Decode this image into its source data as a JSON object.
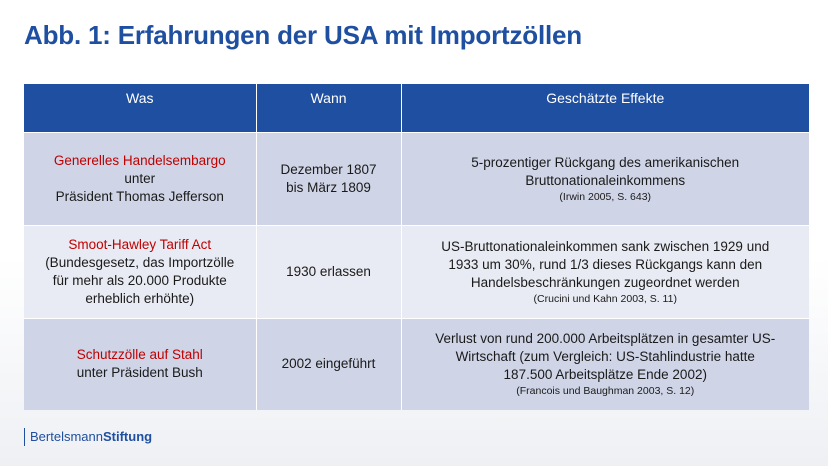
{
  "title": "Abb. 1: Erfahrungen der USA mit Importzöllen",
  "table": {
    "headers": [
      "Was",
      "Wann",
      "Geschätzte Effekte"
    ],
    "rows": [
      {
        "was_highlight": "Generelles Handelsembargo",
        "was_rest": [
          "unter",
          "Präsident Thomas Jefferson"
        ],
        "wann": [
          "Dezember 1807",
          "bis März 1809"
        ],
        "effekte": [
          "5-prozentiger Rückgang des amerikanischen",
          "Bruttonationaleinkommens"
        ],
        "quelle": "(Irwin 2005, S. 643)"
      },
      {
        "was_highlight": "Smoot-Hawley Tariff Act",
        "was_rest": [
          "(Bundesgesetz, das Importzölle",
          "für mehr als 20.000 Produkte",
          "erheblich erhöhte)"
        ],
        "wann": [
          "1930 erlassen"
        ],
        "effekte": [
          "US-Bruttonationaleinkommen sank zwischen 1929 und",
          "1933 um 30%, rund 1/3 dieses Rückgangs kann den",
          "Handelsbeschränkungen zugeordnet werden"
        ],
        "quelle": "(Crucini und Kahn 2003, S. 11)"
      },
      {
        "was_highlight": "Schutzzölle auf Stahl",
        "was_rest": [
          "unter Präsident Bush"
        ],
        "wann": [
          "2002 eingeführt"
        ],
        "effekte": [
          "Verlust von rund 200.000 Arbeitsplätzen in gesamter US-",
          "Wirtschaft (zum Vergleich: US-Stahlindustrie hatte",
          "187.500 Arbeitsplätze Ende 2002)"
        ],
        "quelle": "(Francois und Baughman 2003, S. 12)"
      }
    ]
  },
  "footer": {
    "logo_part1": "Bertelsmann",
    "logo_part2": "Stiftung",
    "accent_color": "#1f4fa0"
  },
  "colors": {
    "header_bg": "#1f4fa0",
    "row_dark": "#cfd5e7",
    "row_light": "#e8ebf3",
    "highlight": "#c00000"
  }
}
